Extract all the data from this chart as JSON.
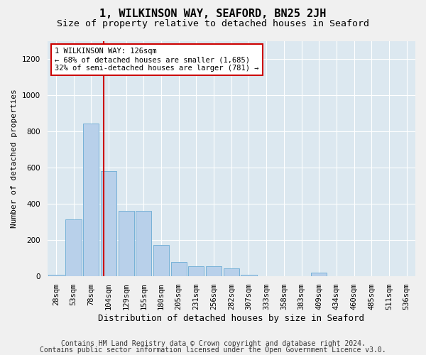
{
  "title": "1, WILKINSON WAY, SEAFORD, BN25 2JH",
  "subtitle": "Size of property relative to detached houses in Seaford",
  "xlabel": "Distribution of detached houses by size in Seaford",
  "ylabel": "Number of detached properties",
  "footer_line1": "Contains HM Land Registry data © Crown copyright and database right 2024.",
  "footer_line2": "Contains public sector information licensed under the Open Government Licence v3.0.",
  "bar_labels": [
    "28sqm",
    "53sqm",
    "78sqm",
    "104sqm",
    "129sqm",
    "155sqm",
    "180sqm",
    "205sqm",
    "231sqm",
    "256sqm",
    "282sqm",
    "307sqm",
    "333sqm",
    "358sqm",
    "383sqm",
    "409sqm",
    "434sqm",
    "460sqm",
    "485sqm",
    "511sqm",
    "536sqm"
  ],
  "bar_values": [
    10,
    315,
    845,
    580,
    360,
    360,
    175,
    80,
    55,
    55,
    45,
    10,
    0,
    0,
    0,
    20,
    0,
    0,
    0,
    0,
    0
  ],
  "bar_color": "#b8d0ea",
  "bar_edge_color": "#6aaad4",
  "annotation_text": "1 WILKINSON WAY: 126sqm\n← 68% of detached houses are smaller (1,685)\n32% of semi-detached houses are larger (781) →",
  "annotation_box_color": "#ffffff",
  "annotation_box_edge": "#cc0000",
  "vline_color": "#cc0000",
  "vline_xdata": 2.72,
  "ylim": [
    0,
    1300
  ],
  "yticks": [
    0,
    200,
    400,
    600,
    800,
    1000,
    1200
  ],
  "background_color": "#dce8f0",
  "grid_color": "#ffffff",
  "fig_bg_color": "#f0f0f0",
  "title_fontsize": 11,
  "subtitle_fontsize": 9.5,
  "xlabel_fontsize": 9,
  "ylabel_fontsize": 8,
  "tick_fontsize": 7.5,
  "footer_fontsize": 7,
  "ann_fontsize": 7.5
}
